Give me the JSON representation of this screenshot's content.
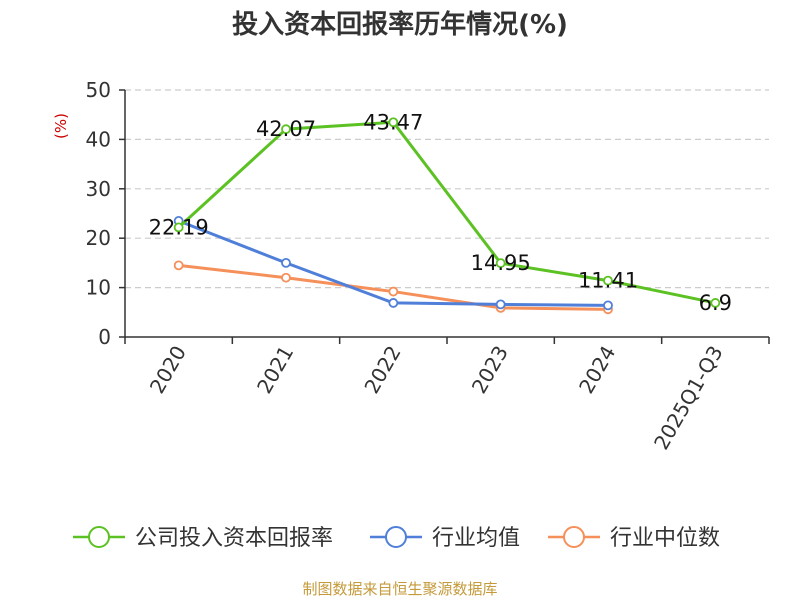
{
  "chart_data": {
    "type": "line",
    "title": "投入资本回报率历年情况(%)",
    "ylabel": "(%)",
    "ylim": [
      0,
      50
    ],
    "yticks": [
      0,
      10,
      20,
      30,
      40,
      50
    ],
    "categories": [
      "2020",
      "2021",
      "2022",
      "2023",
      "2024",
      "2025Q1-Q3"
    ],
    "series": [
      {
        "name": "公司投入资本回报率",
        "color": "#5cc223",
        "values": [
          22.19,
          42.07,
          43.47,
          14.95,
          11.41,
          6.9
        ],
        "labels": [
          "22.19",
          "42.07",
          "43.47",
          "14.95",
          "11.41",
          "6.9"
        ]
      },
      {
        "name": "行业均值",
        "color": "#4f7fd8",
        "values": [
          23.5,
          15.0,
          6.9,
          6.6,
          6.4,
          null
        ]
      },
      {
        "name": "行业中位数",
        "color": "#f5905a",
        "values": [
          14.5,
          12.0,
          9.2,
          5.9,
          5.6,
          null
        ]
      }
    ],
    "grid": "horizontal-dashed",
    "legend": "bottom"
  },
  "colors": {
    "ylabel": "#cc0000",
    "source": "#c49a3a",
    "axis": "#333333",
    "grid": "#cccccc"
  },
  "source_text": "制图数据来自恒生聚源数据库"
}
